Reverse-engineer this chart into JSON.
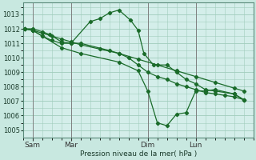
{
  "bg_color": "#c8e8e0",
  "plot_bg": "#d4eeea",
  "grid_color": "#a0ccbc",
  "line_color": "#1a6b2a",
  "marker_color": "#1a6b2a",
  "xlabel": "Pression niveau de la mer( hPa )",
  "ylim": [
    1004.5,
    1013.8
  ],
  "yticks": [
    1005,
    1006,
    1007,
    1008,
    1009,
    1010,
    1011,
    1012,
    1013
  ],
  "xtick_labels": [
    "Sam",
    "Mar",
    "Dim",
    "Lun"
  ],
  "vline_x": [
    0.5,
    2.5,
    6.5,
    9.0
  ],
  "xlim": [
    0,
    12
  ],
  "series1_x": [
    0.1,
    0.5,
    1.0,
    1.4,
    2.0,
    2.5,
    3.5,
    4.0,
    4.5,
    5.0,
    5.6,
    6.0,
    6.3,
    6.8,
    7.5,
    8.0,
    8.5,
    9.0,
    9.5,
    10.0,
    11.0,
    11.5
  ],
  "series1_y": [
    1012.0,
    1012.0,
    1011.8,
    1011.6,
    1011.1,
    1011.0,
    1012.5,
    1012.7,
    1013.1,
    1013.3,
    1012.6,
    1011.9,
    1010.3,
    1009.5,
    1009.5,
    1009.0,
    1008.5,
    1008.2,
    1007.8,
    1007.7,
    1007.5,
    1007.1
  ],
  "series2_x": [
    0.1,
    0.5,
    1.0,
    1.5,
    2.0,
    2.5,
    3.0,
    4.5,
    5.0,
    5.5,
    6.0,
    6.5,
    7.0,
    7.5,
    8.0,
    8.5,
    9.0,
    9.5,
    10.0,
    10.5,
    11.0,
    11.5
  ],
  "series2_y": [
    1012.0,
    1011.9,
    1011.5,
    1011.2,
    1011.0,
    1011.0,
    1011.0,
    1010.5,
    1010.3,
    1010.0,
    1009.5,
    1009.0,
    1008.7,
    1008.5,
    1008.2,
    1008.0,
    1007.8,
    1007.6,
    1007.5,
    1007.4,
    1007.3,
    1007.1
  ],
  "series3_x": [
    0.1,
    0.5,
    1.0,
    1.5,
    2.0,
    2.5,
    3.0,
    4.0,
    5.0,
    6.0,
    7.0,
    8.0,
    9.0,
    10.0,
    11.0,
    11.5
  ],
  "series3_y": [
    1012.0,
    1011.9,
    1011.7,
    1011.5,
    1011.3,
    1011.1,
    1010.9,
    1010.6,
    1010.3,
    1009.9,
    1009.5,
    1009.1,
    1008.7,
    1008.3,
    1007.9,
    1007.7
  ],
  "series4_x": [
    0.1,
    0.5,
    1.0,
    2.0,
    3.0,
    5.0,
    6.0,
    6.5,
    7.0,
    7.5,
    8.0,
    8.5,
    9.0,
    9.5,
    10.0,
    11.0,
    11.5
  ],
  "series4_y": [
    1012.0,
    1011.9,
    1011.5,
    1010.7,
    1010.3,
    1009.7,
    1009.1,
    1007.7,
    1005.5,
    1005.3,
    1006.1,
    1006.2,
    1007.7,
    1007.7,
    1007.8,
    1007.5,
    1007.1
  ]
}
